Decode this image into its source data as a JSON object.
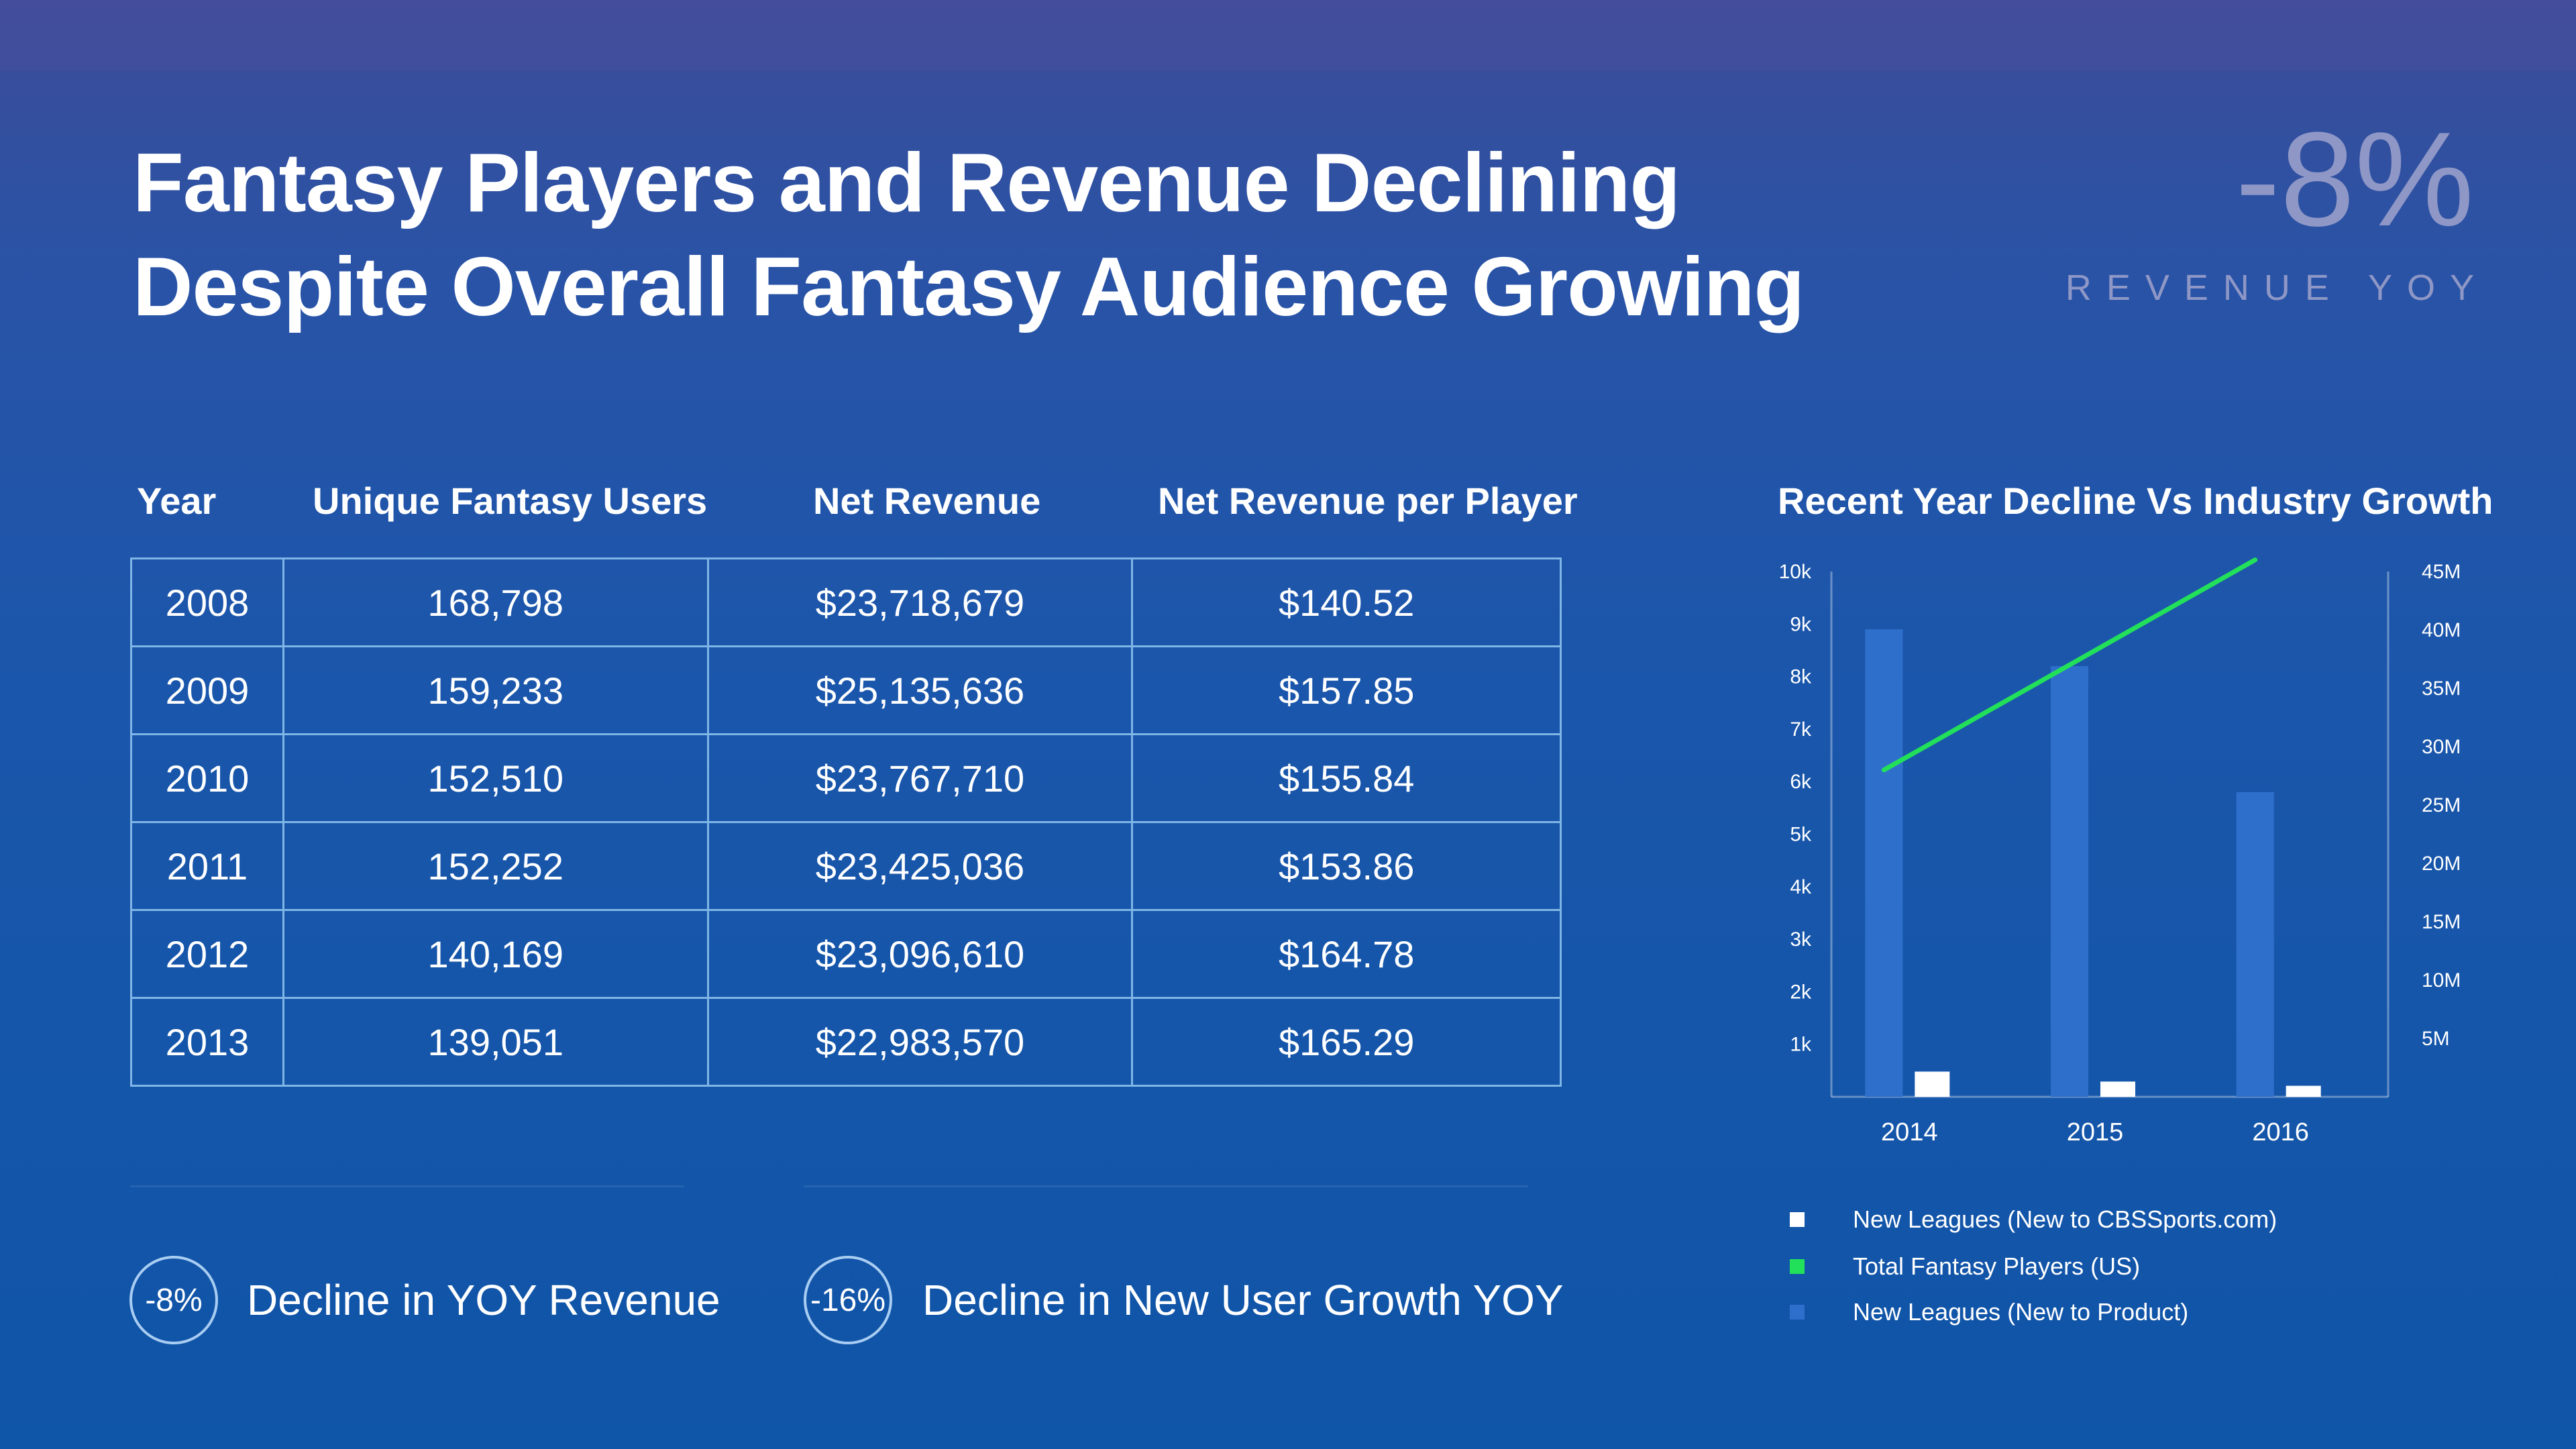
{
  "title": {
    "line1": "Fantasy Players and Revenue Declining",
    "line2": "Despite Overall Fantasy Audience Growing"
  },
  "kpi": {
    "value": "-8%",
    "label": "REVENUE YOY"
  },
  "table": {
    "headers": [
      "Year",
      "Unique Fantasy Users",
      "Net Revenue",
      "Net Revenue per Player"
    ],
    "rows": [
      [
        "2008",
        "168,798",
        "$23,718,679",
        "$140.52"
      ],
      [
        "2009",
        "159,233",
        "$25,135,636",
        "$157.85"
      ],
      [
        "2010",
        "152,510",
        "$23,767,710",
        "$155.84"
      ],
      [
        "2011",
        "152,252",
        "$23,425,036",
        "$153.86"
      ],
      [
        "2012",
        "140,169",
        "$23,096,610",
        "$164.78"
      ],
      [
        "2013",
        "139,051",
        "$22,983,570",
        "$165.29"
      ]
    ]
  },
  "stats": [
    {
      "badge": "-8%",
      "text": "Decline in YOY Revenue"
    },
    {
      "badge": "-16%",
      "text": "Decline in New User Growth YOY"
    }
  ],
  "colors": {
    "bar_product": "#2f6fcc",
    "bar_cbs": "#ffffff",
    "line_total": "#22e05a",
    "table_border": "#7fb6e6",
    "kpi": "#8e97c6"
  },
  "chart_data": {
    "type": "bar",
    "title": "Recent Year Decline Vs Industry Growth",
    "categories": [
      "2014",
      "2015",
      "2016"
    ],
    "y_left": {
      "min": 0,
      "max": 10000,
      "ticks": [
        1000,
        2000,
        3000,
        4000,
        5000,
        6000,
        7000,
        8000,
        9000,
        10000
      ],
      "tick_labels": [
        "1k",
        "2k",
        "3k",
        "4k",
        "5k",
        "6k",
        "7k",
        "8k",
        "9k",
        "10k"
      ]
    },
    "y_right": {
      "min": 0,
      "max": 45000000,
      "ticks": [
        5000000,
        10000000,
        15000000,
        20000000,
        25000000,
        30000000,
        35000000,
        40000000,
        45000000
      ],
      "tick_labels": [
        "5M",
        "10M",
        "15M",
        "20M",
        "25M",
        "30M",
        "35M",
        "40M",
        "45M"
      ]
    },
    "series": [
      {
        "name": "New Leagues (New to Product)",
        "type": "bar",
        "axis": "left",
        "values": [
          8900,
          8200,
          5800
        ]
      },
      {
        "name": "New Leagues (New to CBSSports.com)",
        "type": "bar",
        "axis": "left",
        "values": [
          480,
          290,
          210
        ]
      },
      {
        "name": "Total Fantasy Players (US)",
        "type": "line",
        "axis": "right",
        "values": [
          28000000,
          37000000,
          46000000
        ]
      }
    ],
    "legend": [
      {
        "label": "New Leagues (New to CBSSports.com)",
        "color": "#ffffff"
      },
      {
        "label": "Total Fantasy Players (US)",
        "color": "#22e05a"
      },
      {
        "label": "New Leagues (New to Product)",
        "color": "#2f6fcc"
      }
    ],
    "legend_position": "bottom",
    "grid": false
  }
}
